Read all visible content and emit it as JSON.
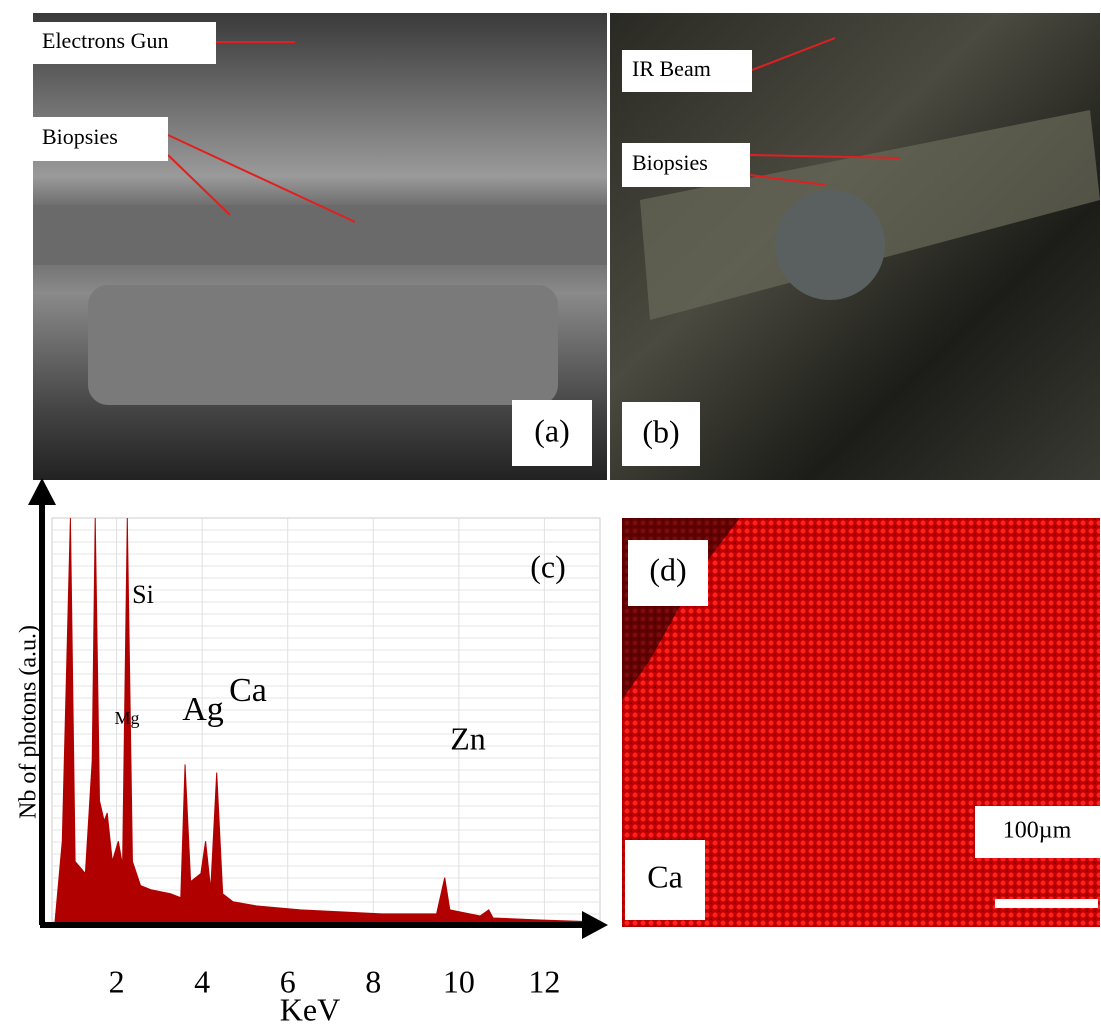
{
  "panels": [
    {
      "label": "(a)",
      "annotations": [
        "Electrons Gun",
        "Biopsies"
      ]
    },
    {
      "label": "(b)",
      "annotations": [
        "IR Beam",
        "Biopsies"
      ]
    },
    {
      "label": "(d)",
      "element": "Ca",
      "scale_bar": "100µm"
    }
  ],
  "chart_data": {
    "type": "area",
    "label": "(c)",
    "xlabel": "KeV",
    "ylabel": "Nb of photons (a.u.)",
    "color": "#b00000",
    "annotations": [
      "Si",
      "Mg",
      "Ag",
      "Ca",
      "Zn"
    ],
    "x": [
      0.56,
      0.73,
      0.92,
      1.03,
      1.27,
      1.43,
      1.5,
      1.6,
      1.71,
      1.78,
      1.9,
      2.04,
      2.14,
      2.25,
      2.37,
      2.56,
      2.8,
      3.26,
      3.5,
      3.6,
      3.73,
      3.97,
      4.08,
      4.2,
      4.34,
      4.48,
      4.72,
      5.26,
      6.3,
      8.2,
      9.48,
      9.67,
      9.79,
      10.5,
      10.7,
      10.8,
      11.9,
      13.3
    ],
    "values": [
      0,
      20,
      100,
      15,
      12,
      40,
      100,
      30,
      25,
      27,
      15,
      20,
      14,
      100,
      15,
      9,
      8,
      7,
      6,
      39,
      10,
      12,
      20,
      8,
      37,
      7,
      5,
      4,
      3,
      2,
      2,
      11,
      3,
      1.5,
      3,
      1,
      0.5,
      0
    ],
    "xlim": [
      0.56,
      13.3
    ],
    "ylim": [
      0,
      100
    ],
    "xticks": [
      2,
      4,
      6,
      8,
      10,
      12
    ]
  }
}
